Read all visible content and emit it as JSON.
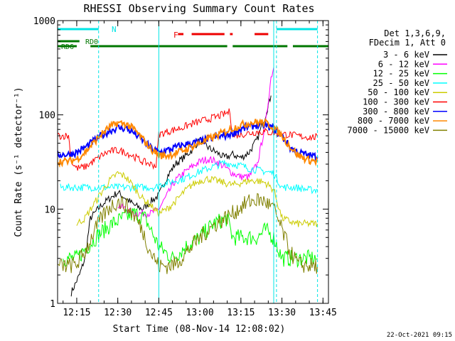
{
  "chart_data": {
    "type": "line",
    "title": "RHESSI Observing Summary Count Rates",
    "xlabel": "Start Time (08-Nov-14 12:08:02)",
    "ylabel": "Count Rate (s⁻¹ detector⁻¹)",
    "y_scale": "log",
    "ylim": [
      1,
      1000
    ],
    "xlim": [
      "12:08",
      "13:47"
    ],
    "x_ticks": [
      "12:15",
      "12:30",
      "12:45",
      "13:00",
      "13:15",
      "13:30",
      "13:45"
    ],
    "y_ticks": [
      "1",
      "10",
      "100",
      "1000"
    ],
    "legend": {
      "placement": "right",
      "header": [
        "Det 1,3,6,9,",
        "FDecim 1, Att 0"
      ]
    },
    "series": [
      {
        "name": "3 - 6 keV",
        "color": "#000000",
        "x": [
          "12:13",
          "12:16",
          "12:18",
          "12:20",
          "12:24",
          "12:27",
          "12:30",
          "12:33",
          "12:36",
          "12:39",
          "12:42",
          "12:45",
          "12:48",
          "12:51",
          "12:54",
          "12:57",
          "13:00",
          "13:03",
          "13:06",
          "13:09",
          "13:12",
          "13:15",
          "13:18",
          "13:21",
          "13:24",
          "13:26"
        ],
        "y": [
          1.3,
          2,
          3,
          8,
          11,
          13,
          15,
          13,
          11,
          10,
          12,
          14,
          22,
          30,
          35,
          42,
          55,
          45,
          40,
          35,
          38,
          35,
          40,
          55,
          100,
          160
        ]
      },
      {
        "name": "6 - 12 keV",
        "color": "#ff00ff",
        "x": [
          "12:30",
          "12:33",
          "12:36",
          "12:39",
          "12:42",
          "12:45",
          "12:48",
          "12:51",
          "12:54",
          "12:57",
          "13:00",
          "13:03",
          "13:06",
          "13:09",
          "13:12",
          "13:15",
          "13:18",
          "13:21",
          "13:24",
          "13:26",
          "13:27"
        ],
        "y": [
          11,
          10,
          9,
          9,
          9,
          10,
          14,
          20,
          24,
          28,
          32,
          34,
          32,
          28,
          24,
          22,
          22,
          30,
          80,
          250,
          320
        ]
      },
      {
        "name": "12 - 25 keV",
        "color": "#00ff00",
        "x": [
          "12:10",
          "12:15",
          "12:19",
          "12:22",
          "12:25",
          "12:28",
          "12:32",
          "12:36",
          "12:40",
          "12:45",
          "12:50",
          "12:55",
          "13:00",
          "13:05",
          "13:10",
          "13:12",
          "13:15",
          "13:18",
          "13:21",
          "13:24",
          "13:27",
          "13:30",
          "13:35",
          "13:40",
          "13:43"
        ],
        "y": [
          3,
          3,
          4,
          5,
          6,
          7,
          8,
          9,
          8,
          4,
          3,
          4,
          5,
          7,
          8,
          5,
          5,
          5,
          5,
          6,
          5,
          3,
          3,
          3,
          3
        ]
      },
      {
        "name": "25 - 50 keV",
        "color": "#00ffff",
        "x": [
          "12:09",
          "12:13",
          "12:16",
          "12:19",
          "12:22",
          "12:25",
          "12:28",
          "12:31",
          "12:34",
          "12:37",
          "12:40",
          "12:44",
          "12:45",
          "12:48",
          "12:51",
          "12:54",
          "12:57",
          "13:00",
          "13:03",
          "13:06",
          "13:09",
          "13:12",
          "13:15",
          "13:18",
          "13:21",
          "13:24",
          "13:27",
          "13:30",
          "13:35",
          "13:40",
          "13:43"
        ],
        "y": [
          17,
          17,
          17,
          17,
          17,
          17,
          17,
          17,
          17,
          17,
          17,
          17,
          18,
          19,
          20,
          21,
          23,
          25,
          27,
          29,
          31,
          30,
          29,
          27,
          26,
          25,
          24,
          17,
          17,
          16,
          16
        ]
      },
      {
        "name": "50 - 100 keV",
        "color": "#cccc00",
        "x": [
          "12:15",
          "12:18",
          "12:21",
          "12:24",
          "12:27",
          "12:30",
          "12:33",
          "12:36",
          "12:39",
          "12:42",
          "12:45",
          "12:48",
          "12:51",
          "12:54",
          "12:57",
          "13:00",
          "13:03",
          "13:06",
          "13:09",
          "13:12",
          "13:15",
          "13:18",
          "13:21",
          "13:24",
          "13:27",
          "13:30",
          "13:35",
          "13:40",
          "13:43"
        ],
        "y": [
          7,
          8,
          11,
          15,
          20,
          24,
          22,
          17,
          13,
          11,
          9,
          10,
          12,
          15,
          18,
          20,
          21,
          20,
          19,
          18,
          19,
          20,
          20,
          19,
          16,
          8,
          7,
          7,
          7
        ]
      },
      {
        "name": "100 - 300 keV",
        "color": "#ff0000",
        "x": [
          "12:08",
          "12:12",
          "12:13",
          "12:15",
          "12:18",
          "12:21",
          "12:24",
          "12:27",
          "12:30",
          "12:33",
          "12:36",
          "12:39",
          "12:42",
          "12:44",
          "12:45",
          "12:48",
          "12:51",
          "12:54",
          "12:57",
          "13:00",
          "13:03",
          "13:06",
          "13:09",
          "13:11",
          "13:12",
          "13:15",
          "13:18",
          "13:21",
          "13:24",
          "13:27",
          "13:30",
          "13:32",
          "13:35",
          "13:40",
          "13:43"
        ],
        "y": [
          60,
          60,
          32,
          27,
          28,
          32,
          37,
          41,
          42,
          40,
          36,
          32,
          30,
          29,
          62,
          66,
          70,
          74,
          80,
          85,
          90,
          95,
          102,
          108,
          60,
          62,
          64,
          66,
          66,
          64,
          62,
          62,
          60,
          58,
          58
        ]
      },
      {
        "name": "300 - 800 keV",
        "color": "#0000ff",
        "x": [
          "12:08",
          "12:12",
          "12:15",
          "12:18",
          "12:21",
          "12:24",
          "12:27",
          "12:30",
          "12:33",
          "12:36",
          "12:39",
          "12:42",
          "12:45",
          "12:48",
          "12:51",
          "12:54",
          "12:57",
          "13:00",
          "13:03",
          "13:06",
          "13:09",
          "13:12",
          "13:15",
          "13:18",
          "13:21",
          "13:24",
          "13:27",
          "13:30",
          "13:33",
          "13:36",
          "13:40",
          "13:43"
        ],
        "y": [
          38,
          38,
          40,
          45,
          52,
          60,
          68,
          73,
          72,
          64,
          54,
          45,
          40,
          42,
          45,
          48,
          50,
          52,
          55,
          58,
          60,
          64,
          70,
          75,
          78,
          77,
          72,
          60,
          45,
          40,
          37,
          36
        ]
      },
      {
        "name": "800 - 7000 keV",
        "color": "#ff8800",
        "x": [
          "12:08",
          "12:12",
          "12:15",
          "12:18",
          "12:21",
          "12:24",
          "12:27",
          "12:30",
          "12:33",
          "12:36",
          "12:39",
          "12:42",
          "12:45",
          "12:48",
          "12:51",
          "12:54",
          "12:57",
          "13:00",
          "13:03",
          "13:06",
          "13:09",
          "13:12",
          "13:15",
          "13:18",
          "13:21",
          "13:24",
          "13:27",
          "13:30",
          "13:33",
          "13:36",
          "13:40",
          "13:43"
        ],
        "y": [
          32,
          32,
          34,
          40,
          50,
          62,
          74,
          82,
          80,
          70,
          56,
          44,
          37,
          37,
          39,
          42,
          46,
          50,
          55,
          60,
          66,
          72,
          78,
          82,
          84,
          82,
          74,
          60,
          46,
          37,
          33,
          32
        ]
      },
      {
        "name": "7000 - 15000 keV",
        "color": "#808000",
        "x": [
          "12:08",
          "12:12",
          "12:15",
          "12:18",
          "12:21",
          "12:24",
          "12:27",
          "12:30",
          "12:33",
          "12:36",
          "12:39",
          "12:42",
          "12:45",
          "12:48",
          "12:51",
          "12:54",
          "12:57",
          "13:00",
          "13:03",
          "13:06",
          "13:09",
          "13:12",
          "13:15",
          "13:18",
          "13:21",
          "13:24",
          "13:27",
          "13:30",
          "13:33",
          "13:36",
          "13:40",
          "13:43"
        ],
        "y": [
          2.5,
          2.5,
          2.6,
          3.5,
          5.5,
          8,
          10.5,
          12,
          11,
          8.5,
          6,
          3.5,
          2.5,
          2.5,
          2.6,
          3.2,
          4,
          5,
          6,
          7,
          8,
          9,
          10.5,
          12,
          12.5,
          12,
          10,
          6,
          3.5,
          2.6,
          2.5,
          2.5
        ]
      }
    ],
    "annotations": {
      "attenuator_label": "N",
      "flare_label": "F",
      "rd_labels": [
        "RD0",
        "RD6"
      ],
      "timestamp": "22-Oct-2021 09:15"
    }
  },
  "overlays": {
    "cyan_bars": [
      [
        "12:08",
        "12:23"
      ],
      [
        "13:28",
        "13:43"
      ]
    ],
    "flare_bars": [
      [
        "12:52",
        "12:54"
      ],
      [
        "12:57",
        "13:09"
      ],
      [
        "13:11",
        "13:12"
      ],
      [
        "13:20",
        "13:25"
      ]
    ],
    "rd0_bars": [
      [
        "12:08",
        "12:16"
      ]
    ],
    "rd6_bars": [
      [
        "12:08",
        "12:15"
      ],
      [
        "12:20",
        "12:45"
      ],
      [
        "12:45",
        "13:10"
      ],
      [
        "13:12",
        "13:32"
      ],
      [
        "13:34",
        "13:47"
      ]
    ],
    "solid_vlines": [
      "12:08",
      "12:45",
      "13:27"
    ],
    "dashed_vlines": [
      "12:23",
      "13:28",
      "13:43"
    ]
  }
}
